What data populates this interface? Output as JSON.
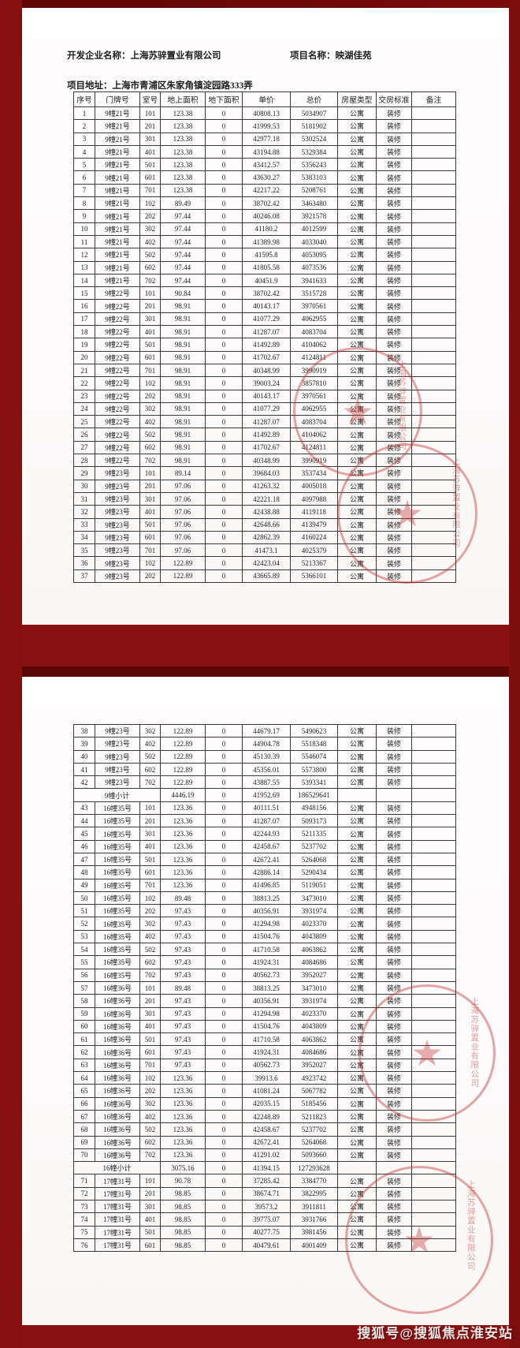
{
  "colors": {
    "frame_red": "#8a1111",
    "frame_top_red": "#6e0808",
    "page_white": "#fdfbfb",
    "seal_red": "#c32d2d",
    "table_border": "#3a3a3a",
    "watermark_text": "#efe4e4"
  },
  "header": {
    "developer_label": "开发企业名称：",
    "developer_name": "上海苏骍置业有限公司",
    "project_label": "项目名称：",
    "project_name": "映湖佳苑",
    "address_label": "项目地址：",
    "address_value": "上海市青浦区朱家角镇淀园路333弄"
  },
  "table": {
    "headers": [
      "序号",
      "门牌号",
      "室号",
      "地上面积",
      "地下面积",
      "单价",
      "总价",
      "房屋类型",
      "交房标准",
      "备注"
    ]
  },
  "page1_rows": [
    [
      "1",
      "9幢21号",
      "101",
      "123.38",
      "0",
      "40808.13",
      "5034907",
      "公寓",
      "装修",
      ""
    ],
    [
      "2",
      "9幢21号",
      "201",
      "123.38",
      "0",
      "41999.53",
      "5181902",
      "公寓",
      "装修",
      ""
    ],
    [
      "3",
      "9幢21号",
      "301",
      "123.38",
      "0",
      "42977.18",
      "5302524",
      "公寓",
      "装修",
      ""
    ],
    [
      "4",
      "9幢21号",
      "401",
      "123.38",
      "0",
      "43194.88",
      "5329384",
      "公寓",
      "装修",
      ""
    ],
    [
      "5",
      "9幢21号",
      "501",
      "123.38",
      "0",
      "43412.57",
      "5356243",
      "公寓",
      "装修",
      ""
    ],
    [
      "6",
      "9幢21号",
      "601",
      "123.38",
      "0",
      "43630.27",
      "5383103",
      "公寓",
      "装修",
      ""
    ],
    [
      "7",
      "9幢21号",
      "701",
      "123.38",
      "0",
      "42217.22",
      "5208761",
      "公寓",
      "装修",
      ""
    ],
    [
      "8",
      "9幢21号",
      "102",
      "89.49",
      "0",
      "38702.42",
      "3463480",
      "公寓",
      "装修",
      ""
    ],
    [
      "9",
      "9幢21号",
      "202",
      "97.44",
      "0",
      "40246.08",
      "3921578",
      "公寓",
      "装修",
      ""
    ],
    [
      "10",
      "9幢21号",
      "302",
      "97.44",
      "0",
      "41180.2",
      "4012599",
      "公寓",
      "装修",
      ""
    ],
    [
      "11",
      "9幢21号",
      "402",
      "97.44",
      "0",
      "41389.98",
      "4033040",
      "公寓",
      "装修",
      ""
    ],
    [
      "12",
      "9幢21号",
      "502",
      "97.44",
      "0",
      "41595.8",
      "4053095",
      "公寓",
      "装修",
      ""
    ],
    [
      "13",
      "9幢21号",
      "602",
      "97.44",
      "0",
      "41805.58",
      "4073536",
      "公寓",
      "装修",
      ""
    ],
    [
      "14",
      "9幢21号",
      "702",
      "97.44",
      "0",
      "40451.9",
      "3941633",
      "公寓",
      "装修",
      ""
    ],
    [
      "15",
      "9幢22号",
      "101",
      "90.84",
      "0",
      "38702.42",
      "3515728",
      "公寓",
      "装修",
      ""
    ],
    [
      "16",
      "9幢22号",
      "201",
      "98.91",
      "0",
      "40143.17",
      "3970561",
      "公寓",
      "装修",
      ""
    ],
    [
      "17",
      "9幢22号",
      "301",
      "98.91",
      "0",
      "41077.29",
      "4062955",
      "公寓",
      "装修",
      ""
    ],
    [
      "18",
      "9幢22号",
      "401",
      "98.91",
      "0",
      "41287.07",
      "4083704",
      "公寓",
      "装修",
      ""
    ],
    [
      "19",
      "9幢22号",
      "501",
      "98.91",
      "0",
      "41492.89",
      "4104062",
      "公寓",
      "装修",
      ""
    ],
    [
      "20",
      "9幢22号",
      "601",
      "98.91",
      "0",
      "41702.67",
      "4124811",
      "公寓",
      "装修",
      ""
    ],
    [
      "21",
      "9幢22号",
      "701",
      "98.91",
      "0",
      "40348.99",
      "3990919",
      "公寓",
      "装修",
      ""
    ],
    [
      "22",
      "9幢22号",
      "102",
      "98.91",
      "0",
      "39003.24",
      "3857810",
      "公寓",
      "装修",
      ""
    ],
    [
      "23",
      "9幢22号",
      "202",
      "98.91",
      "0",
      "40143.17",
      "3970561",
      "公寓",
      "装修",
      ""
    ],
    [
      "24",
      "9幢22号",
      "302",
      "98.91",
      "0",
      "41077.29",
      "4062955",
      "公寓",
      "装修",
      ""
    ],
    [
      "25",
      "9幢22号",
      "402",
      "98.91",
      "0",
      "41287.07",
      "4083704",
      "公寓",
      "装修",
      ""
    ],
    [
      "26",
      "9幢22号",
      "502",
      "98.91",
      "0",
      "41492.89",
      "4104062",
      "公寓",
      "装修",
      ""
    ],
    [
      "27",
      "9幢22号",
      "602",
      "98.91",
      "0",
      "41702.67",
      "4124811",
      "公寓",
      "装修",
      ""
    ],
    [
      "28",
      "9幢22号",
      "702",
      "98.91",
      "0",
      "40348.99",
      "3990919",
      "公寓",
      "装修",
      ""
    ],
    [
      "29",
      "9幢23号",
      "101",
      "89.14",
      "0",
      "39684.03",
      "3537434",
      "公寓",
      "装修",
      ""
    ],
    [
      "30",
      "9幢23号",
      "201",
      "97.06",
      "0",
      "41263.32",
      "4005018",
      "公寓",
      "装修",
      ""
    ],
    [
      "31",
      "9幢23号",
      "301",
      "97.06",
      "0",
      "42221.18",
      "4097988",
      "公寓",
      "装修",
      ""
    ],
    [
      "32",
      "9幢23号",
      "401",
      "97.06",
      "0",
      "42438.88",
      "4119118",
      "公寓",
      "装修",
      ""
    ],
    [
      "33",
      "9幢23号",
      "501",
      "97.06",
      "0",
      "42648.66",
      "4139479",
      "公寓",
      "装修",
      ""
    ],
    [
      "34",
      "9幢23号",
      "601",
      "97.06",
      "0",
      "42862.39",
      "4160224",
      "公寓",
      "装修",
      ""
    ],
    [
      "35",
      "9幢23号",
      "701",
      "97.06",
      "0",
      "41473.1",
      "4025379",
      "公寓",
      "装修",
      ""
    ],
    [
      "36",
      "9幢23号",
      "102",
      "122.89",
      "0",
      "42423.04",
      "5213367",
      "公寓",
      "装修",
      ""
    ],
    [
      "37",
      "9幢23号",
      "202",
      "122.89",
      "0",
      "43665.89",
      "5366101",
      "公寓",
      "装修",
      ""
    ]
  ],
  "page2_rows": [
    [
      "38",
      "9幢23号",
      "302",
      "122.89",
      "0",
      "44679.17",
      "5490623",
      "公寓",
      "装修",
      ""
    ],
    [
      "39",
      "9幢23号",
      "402",
      "122.89",
      "0",
      "44904.78",
      "5518348",
      "公寓",
      "装修",
      ""
    ],
    [
      "40",
      "9幢23号",
      "502",
      "122.89",
      "0",
      "45130.39",
      "5546074",
      "公寓",
      "装修",
      ""
    ],
    [
      "41",
      "9幢23号",
      "602",
      "122.89",
      "0",
      "45356.01",
      "5573800",
      "公寓",
      "装修",
      ""
    ],
    [
      "42",
      "9幢23号",
      "702",
      "122.89",
      "0",
      "43887.55",
      "5393341",
      "公寓",
      "装修",
      ""
    ],
    {
      "subtotal": "9幢小计",
      "cells": [
        "4446.19",
        "0",
        "41952.69",
        "186529641"
      ]
    },
    [
      "43",
      "16幢35号",
      "101",
      "123.36",
      "0",
      "40111.51",
      "4948156",
      "公寓",
      "装修",
      ""
    ],
    [
      "44",
      "16幢35号",
      "201",
      "123.36",
      "0",
      "41287.07",
      "5093173",
      "公寓",
      "装修",
      ""
    ],
    [
      "45",
      "16幢35号",
      "301",
      "123.36",
      "0",
      "42244.93",
      "5211335",
      "公寓",
      "装修",
      ""
    ],
    [
      "46",
      "16幢35号",
      "401",
      "123.36",
      "0",
      "42458.67",
      "5237702",
      "公寓",
      "装修",
      ""
    ],
    [
      "47",
      "16幢35号",
      "501",
      "123.36",
      "0",
      "42672.41",
      "5264068",
      "公寓",
      "装修",
      ""
    ],
    [
      "48",
      "16幢35号",
      "601",
      "123.36",
      "0",
      "42886.14",
      "5290434",
      "公寓",
      "装修",
      ""
    ],
    [
      "49",
      "16幢35号",
      "701",
      "123.36",
      "0",
      "41496.85",
      "5119051",
      "公寓",
      "装修",
      ""
    ],
    [
      "50",
      "16幢35号",
      "102",
      "89.48",
      "0",
      "38813.25",
      "3473010",
      "公寓",
      "装修",
      ""
    ],
    [
      "51",
      "16幢35号",
      "202",
      "97.43",
      "0",
      "40356.91",
      "3931974",
      "公寓",
      "装修",
      ""
    ],
    [
      "52",
      "16幢35号",
      "302",
      "97.43",
      "0",
      "41294.98",
      "4023370",
      "公寓",
      "装修",
      ""
    ],
    [
      "53",
      "16幢35号",
      "402",
      "97.43",
      "0",
      "41504.76",
      "4043809",
      "公寓",
      "装修",
      ""
    ],
    [
      "54",
      "16幢35号",
      "502",
      "97.43",
      "0",
      "41710.58",
      "4063862",
      "公寓",
      "装修",
      ""
    ],
    [
      "55",
      "16幢35号",
      "602",
      "97.43",
      "0",
      "41924.31",
      "4084686",
      "公寓",
      "装修",
      ""
    ],
    [
      "56",
      "16幢35号",
      "702",
      "97.43",
      "0",
      "40562.73",
      "3952027",
      "公寓",
      "装修",
      ""
    ],
    [
      "57",
      "16幢36号",
      "101",
      "89.48",
      "0",
      "38813.25",
      "3473010",
      "公寓",
      "装修",
      ""
    ],
    [
      "58",
      "16幢36号",
      "201",
      "97.43",
      "0",
      "40356.91",
      "3931974",
      "公寓",
      "装修",
      ""
    ],
    [
      "59",
      "16幢36号",
      "301",
      "97.43",
      "0",
      "41294.98",
      "4023370",
      "公寓",
      "装修",
      ""
    ],
    [
      "60",
      "16幢36号",
      "401",
      "97.43",
      "0",
      "41504.76",
      "4043809",
      "公寓",
      "装修",
      ""
    ],
    [
      "61",
      "16幢36号",
      "501",
      "97.43",
      "0",
      "41710.58",
      "4063862",
      "公寓",
      "装修",
      ""
    ],
    [
      "62",
      "16幢36号",
      "601",
      "97.43",
      "0",
      "41924.31",
      "4084686",
      "公寓",
      "装修",
      ""
    ],
    [
      "63",
      "16幢36号",
      "701",
      "97.43",
      "0",
      "40562.73",
      "3952027",
      "公寓",
      "装修",
      ""
    ],
    [
      "64",
      "16幢36号",
      "102",
      "123.36",
      "0",
      "39913.6",
      "4923742",
      "公寓",
      "装修",
      ""
    ],
    [
      "65",
      "16幢36号",
      "202",
      "123.36",
      "0",
      "41081.24",
      "5067782",
      "公寓",
      "装修",
      ""
    ],
    [
      "66",
      "16幢36号",
      "302",
      "123.36",
      "0",
      "42035.15",
      "5185456",
      "公寓",
      "装修",
      ""
    ],
    [
      "67",
      "16幢36号",
      "402",
      "123.36",
      "0",
      "42248.89",
      "5211823",
      "公寓",
      "装修",
      ""
    ],
    [
      "68",
      "16幢36号",
      "502",
      "123.36",
      "0",
      "42458.67",
      "5237702",
      "公寓",
      "装修",
      ""
    ],
    [
      "69",
      "16幢36号",
      "602",
      "123.36",
      "0",
      "42672.41",
      "5264068",
      "公寓",
      "装修",
      ""
    ],
    [
      "70",
      "16幢36号",
      "702",
      "123.36",
      "0",
      "41291.02",
      "5093660",
      "公寓",
      "装修",
      ""
    ],
    {
      "subtotal": "16幢小计",
      "cells": [
        "3075.16",
        "0",
        "41394.15",
        "127293628"
      ]
    },
    [
      "71",
      "17幢31号",
      "101",
      "90.78",
      "0",
      "37285.42",
      "3384770",
      "公寓",
      "装修",
      ""
    ],
    [
      "72",
      "17幢31号",
      "201",
      "98.85",
      "0",
      "38674.71",
      "3822995",
      "公寓",
      "装修",
      ""
    ],
    [
      "73",
      "17幢31号",
      "301",
      "98.85",
      "0",
      "39573.2",
      "3911811",
      "公寓",
      "装修",
      ""
    ],
    [
      "74",
      "17幢31号",
      "401",
      "98.85",
      "0",
      "39775.07",
      "3931766",
      "公寓",
      "装修",
      ""
    ],
    [
      "75",
      "17幢31号",
      "501",
      "98.85",
      "0",
      "40277.75",
      "3981456",
      "公寓",
      "装修",
      ""
    ],
    [
      "76",
      "17幢31号",
      "601",
      "98.85",
      "0",
      "40479.61",
      "4001409",
      "公寓",
      "装修",
      ""
    ]
  ],
  "seal": {
    "star": "★",
    "text": "上海苏骍置业有限公司"
  },
  "watermark": {
    "text": "搜狐号@搜狐焦点淮安站"
  }
}
